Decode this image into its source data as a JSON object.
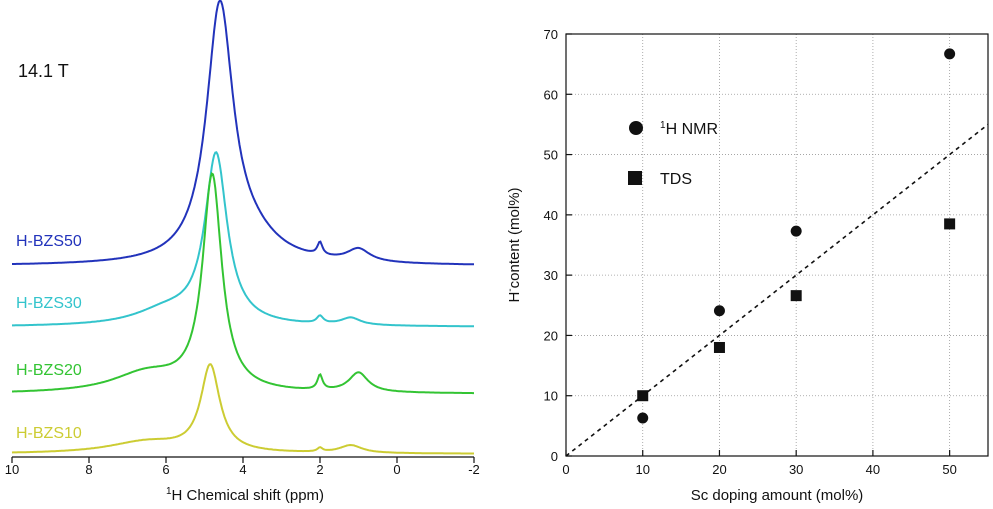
{
  "chart_data": [
    {
      "type": "line",
      "title": "",
      "field_label": "14.1 T",
      "xlabel_prefix": "1",
      "xlabel_text": "H Chemical shift (ppm)",
      "ylabel": "",
      "xlim": [
        10,
        -2
      ],
      "x_reversed": true,
      "x_ticks": [
        "10",
        "8",
        "6",
        "4",
        "2",
        "0",
        "-2"
      ],
      "series": [
        {
          "name": "H-BZS50",
          "color": "#2233bb",
          "peaks": [
            {
              "center": 4.6,
              "height": 1.0,
              "width": 0.42
            },
            {
              "center": 3.8,
              "height": 0.08,
              "width": 0.9
            },
            {
              "center": 2.0,
              "height": 0.05,
              "width": 0.08
            },
            {
              "center": 1.0,
              "height": 0.05,
              "width": 0.35
            }
          ]
        },
        {
          "name": "H-BZS30",
          "color": "#33c4cc",
          "peaks": [
            {
              "center": 4.7,
              "height": 0.7,
              "width": 0.35
            },
            {
              "center": 6.0,
              "height": 0.06,
              "width": 1.0
            },
            {
              "center": 2.0,
              "height": 0.03,
              "width": 0.1
            },
            {
              "center": 1.2,
              "height": 0.03,
              "width": 0.3
            }
          ]
        },
        {
          "name": "H-BZS20",
          "color": "#33c433",
          "peaks": [
            {
              "center": 4.8,
              "height": 0.88,
              "width": 0.3
            },
            {
              "center": 6.5,
              "height": 0.08,
              "width": 1.1
            },
            {
              "center": 2.0,
              "height": 0.06,
              "width": 0.08
            },
            {
              "center": 1.0,
              "height": 0.08,
              "width": 0.3
            }
          ]
        },
        {
          "name": "H-BZS10",
          "color": "#cccc33",
          "peaks": [
            {
              "center": 4.85,
              "height": 0.44,
              "width": 0.3
            },
            {
              "center": 6.5,
              "height": 0.06,
              "width": 1.2
            },
            {
              "center": 2.0,
              "height": 0.02,
              "width": 0.08
            },
            {
              "center": 1.2,
              "height": 0.04,
              "width": 0.35
            }
          ]
        }
      ]
    },
    {
      "type": "scatter",
      "title": "",
      "xlabel": "Sc doping amount (mol%)",
      "ylabel_main": "H",
      "ylabel_sup": "-",
      "ylabel_rest": "content (mol%)",
      "xlim": [
        0,
        55
      ],
      "ylim": [
        0,
        70
      ],
      "x_ticks": [
        0,
        10,
        20,
        30,
        40,
        50
      ],
      "y_ticks": [
        0,
        10,
        20,
        30,
        40,
        50,
        60,
        70
      ],
      "grid": true,
      "legend_position": "upper-left",
      "series": [
        {
          "name_sup": "1",
          "name": "H NMR",
          "marker": "circle",
          "x": [
            10,
            20,
            30,
            50
          ],
          "y": [
            6.3,
            24.1,
            37.3,
            66.7
          ]
        },
        {
          "name": "TDS",
          "marker": "square",
          "x": [
            10,
            20,
            30,
            50
          ],
          "y": [
            10.0,
            18.0,
            26.6,
            38.5
          ]
        }
      ],
      "reference_line": {
        "style": "dashed",
        "x": [
          0,
          55
        ],
        "y": [
          0,
          55
        ]
      }
    }
  ]
}
